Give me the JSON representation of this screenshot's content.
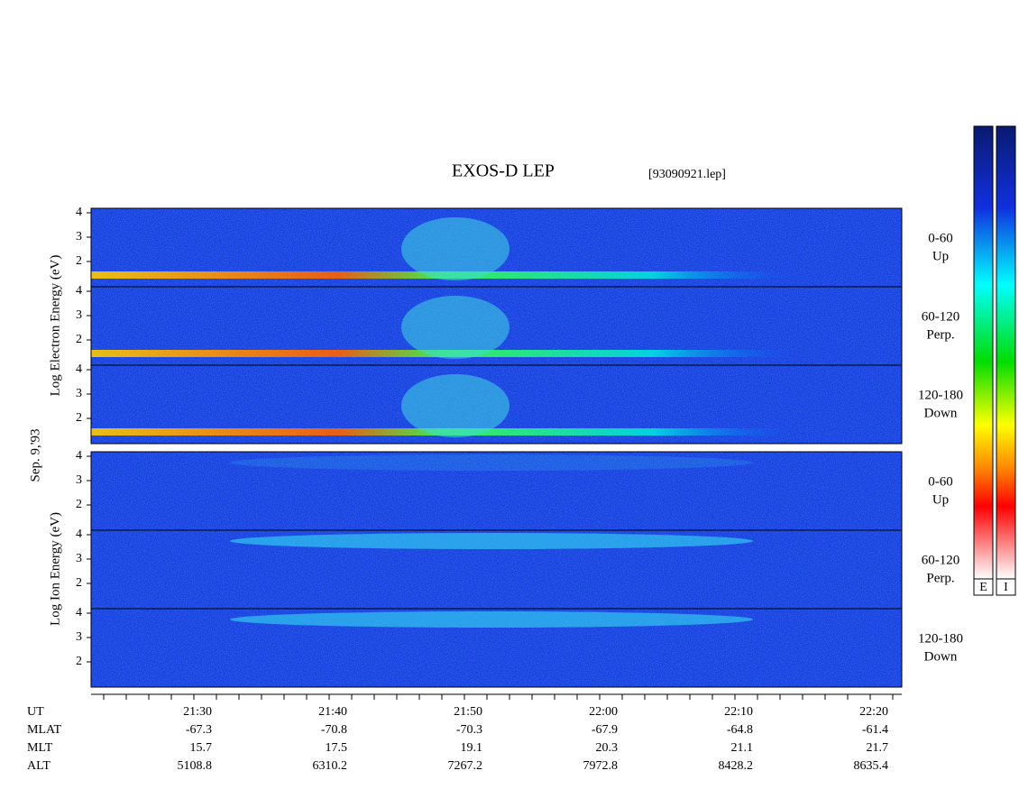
{
  "title": "EXOS-D LEP",
  "file": "[93090921.lep]",
  "date_label": "Sep. 9,'93",
  "yticks": [
    "4",
    "3",
    "2"
  ],
  "electron_panel": {
    "ylabel": "Log  Electron  Energy (eV)",
    "channels": [
      {
        "range": "0-60",
        "direction": "Up"
      },
      {
        "range": "60-120",
        "direction": "Perp."
      },
      {
        "range": "120-180",
        "direction": "Down"
      }
    ]
  },
  "ion_panel": {
    "ylabel": "Log  Ion  Energy (eV)",
    "channels": [
      {
        "range": "0-60",
        "direction": "Up"
      },
      {
        "range": "60-120",
        "direction": "Perp."
      },
      {
        "range": "120-180",
        "direction": "Down"
      }
    ]
  },
  "x_axis": {
    "row_labels": [
      "UT",
      "MLAT",
      "MLT",
      "ALT"
    ],
    "columns": [
      [
        "21:30",
        "-67.3",
        "15.7",
        "5108.8"
      ],
      [
        "21:40",
        "-70.8",
        "17.5",
        "6310.2"
      ],
      [
        "21:50",
        "-70.3",
        "19.1",
        "7267.2"
      ],
      [
        "22:00",
        "-67.9",
        "20.3",
        "7972.8"
      ],
      [
        "22:10",
        "-64.8",
        "21.1",
        "8428.2"
      ],
      [
        "22:20",
        "-61.4",
        "21.7",
        "8635.4"
      ]
    ]
  },
  "colorbar": {
    "labels": [
      "E",
      "I"
    ]
  }
}
